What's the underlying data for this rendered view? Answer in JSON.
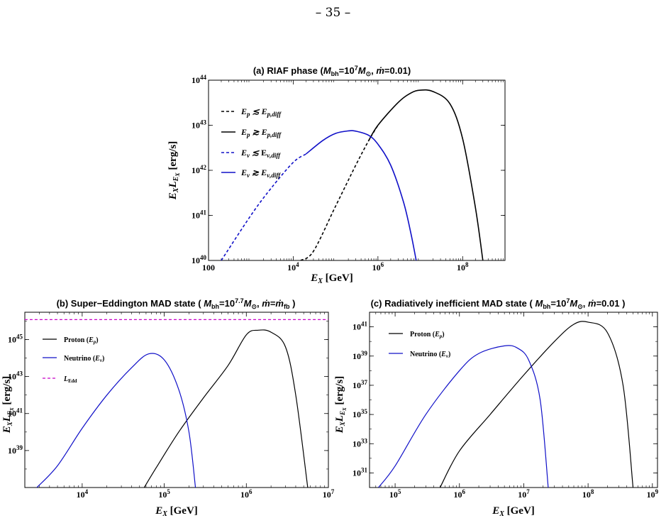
{
  "page": {
    "number": "– 35 –"
  },
  "chart_data": [
    {
      "id": "a",
      "type": "line",
      "title": "(a) RIAF phase (Mbh=10^7 M⊙, ṁ=0.01)",
      "xlabel": "E_X [GeV]",
      "ylabel": "E_X L_EX [erg/s]",
      "xscale": "log",
      "yscale": "log",
      "xlim": [
        100,
        1000000000.0
      ],
      "ylim": [
        1e+40,
        1e+44
      ],
      "xticks": [
        {
          "v": 100,
          "label": "100"
        },
        {
          "v": 10000.0,
          "label": "10^4"
        },
        {
          "v": 1000000.0,
          "label": "10^6"
        },
        {
          "v": 100000000.0,
          "label": "10^8"
        }
      ],
      "yticks": [
        {
          "v": 1e+40,
          "label": "10^40"
        },
        {
          "v": 1e+41,
          "label": "10^41"
        },
        {
          "v": 1e+42,
          "label": "10^42"
        },
        {
          "v": 1e+43,
          "label": "10^43"
        },
        {
          "v": 1e+44,
          "label": "10^44"
        }
      ],
      "legend_position": "top-left",
      "series": [
        {
          "name": "Ep ≲ Ep,diff",
          "color": "#000000",
          "style": "dashed",
          "x": [
            15000,
            30000,
            100000,
            300000,
            600000,
            1000000
          ],
          "y": [
            1e+40,
            1.6e+40,
            1.6e+41,
            1.3e+42,
            4.5e+42,
            1e+43
          ]
        },
        {
          "name": "Ep ≳ Ep,diff",
          "color": "#000000",
          "style": "solid",
          "x": [
            600000,
            1000000,
            3000000,
            6000000,
            10000000,
            20000000,
            50000000,
            100000000,
            200000000,
            300000000
          ],
          "y": [
            4.5e+42,
            1e+43,
            3.2e+43,
            5.2e+43,
            6e+43,
            5.6e+43,
            3e+43,
            5e+42,
            1.5e+41,
            1e+40
          ]
        },
        {
          "name": "Eν ≲ Eν,diff",
          "color": "#1010c8",
          "style": "dashed",
          "x": [
            200,
            1000,
            3000,
            10000,
            20000
          ],
          "y": [
            1e+40,
            1e+41,
            4e+41,
            1.5e+42,
            2.3e+42
          ]
        },
        {
          "name": "Eν ≳ Eν,diff",
          "color": "#1010c8",
          "style": "solid",
          "x": [
            20000,
            50000,
            100000,
            200000,
            300000,
            600000,
            1000000,
            2000000,
            4000000,
            6000000,
            8000000
          ],
          "y": [
            2.3e+42,
            4.6e+42,
            6.6e+42,
            7.5e+42,
            7.4e+42,
            6e+42,
            3.8e+42,
            1.3e+42,
            2e+41,
            4e+40,
            1e+40
          ]
        }
      ]
    },
    {
      "id": "b",
      "type": "line",
      "title": "(b) Super−Eddington MAD state ( Mbh=10^7.7 M⊙, ṁ=ṁfb )",
      "xlabel": "E_X [GeV]",
      "ylabel": "E_X L_EX [erg/s]",
      "xscale": "log",
      "yscale": "log",
      "xlim": [
        2000,
        10000000.0
      ],
      "ylim": [
        1e+37,
        3e+46
      ],
      "xticks": [
        {
          "v": 10000.0,
          "label": "10^4"
        },
        {
          "v": 100000.0,
          "label": "10^5"
        },
        {
          "v": 1000000.0,
          "label": "10^6"
        },
        {
          "v": 10000000.0,
          "label": "10^7"
        }
      ],
      "yticks": [
        {
          "v": 1e+39,
          "label": "10^39"
        },
        {
          "v": 1e+41,
          "label": "10^41"
        },
        {
          "v": 1e+43,
          "label": "10^43"
        },
        {
          "v": 1e+45,
          "label": "10^45"
        }
      ],
      "legend_position": "top-left",
      "series": [
        {
          "name": "Proton (Ep)",
          "color": "#000000",
          "style": "solid",
          "x": [
            57000,
            80000,
            150000,
            300000,
            600000,
            1000000,
            1400000,
            2000000,
            3000000,
            4000000,
            5600000
          ],
          "y": [
            1e+37,
            1.2e+38,
            1e+40,
            7e+41,
            4e+43,
            1.8e+45,
            3.2e+45,
            2.5e+45,
            4e+44,
            1e+42,
            1e+37
          ]
        },
        {
          "name": "Neutrino (Eν)",
          "color": "#1010c8",
          "style": "solid",
          "x": [
            2800,
            5000,
            10000,
            20000,
            40000,
            65000,
            100000,
            150000,
            200000,
            240000
          ],
          "y": [
            1e+37,
            1.5e+38,
            1.6e+40,
            1e+42,
            3e+43,
            1.7e+44,
            8e+43,
            2e+42,
            1e+40,
            1e+37
          ]
        },
        {
          "name": "LEdd",
          "color": "#c800c8",
          "style": "dashed",
          "x": [
            2000,
            10000000
          ],
          "y": [
            1.2e+46,
            1.2e+46
          ]
        }
      ]
    },
    {
      "id": "c",
      "type": "line",
      "title": "(c) Radiatively inefficient MAD state ( Mbh=10^7 M⊙, ṁ=0.01 )",
      "xlabel": "E_X [GeV]",
      "ylabel": "E_X L_EX [erg/s]",
      "xscale": "log",
      "yscale": "log",
      "xlim": [
        40000,
        1200000000.0
      ],
      "ylim": [
        1e+30,
        1e+42
      ],
      "xticks": [
        {
          "v": 100000.0,
          "label": "10^5"
        },
        {
          "v": 1000000.0,
          "label": "10^6"
        },
        {
          "v": 10000000.0,
          "label": "10^7"
        },
        {
          "v": 100000000.0,
          "label": "10^8"
        },
        {
          "v": 1000000000.0,
          "label": "10^9"
        }
      ],
      "yticks": [
        {
          "v": 1e+31,
          "label": "10^31"
        },
        {
          "v": 1e+33,
          "label": "10^33"
        },
        {
          "v": 1e+35,
          "label": "10^35"
        },
        {
          "v": 1e+37,
          "label": "10^37"
        },
        {
          "v": 1e+39,
          "label": "10^39"
        },
        {
          "v": 1e+41,
          "label": "10^41"
        }
      ],
      "legend_position": "top-left",
      "series": [
        {
          "name": "Proton (Ep)",
          "color": "#000000",
          "style": "solid",
          "x": [
            500000,
            1000000,
            3000000,
            10000000,
            30000000,
            60000000,
            100000000,
            200000000,
            350000000,
            500000000
          ],
          "y": [
            1e+30,
            3.2e+32,
            1e+35,
            5e+37,
            1e+40,
            1.5e+41,
            2.1e+41,
            4e+40,
            1e+37,
            1e+30
          ]
        },
        {
          "name": "Neutrino (Eν)",
          "color": "#1010c8",
          "style": "solid",
          "x": [
            55000,
            100000,
            300000,
            1000000,
            2000000,
            5000000,
            8000000,
            12000000,
            18000000,
            24000000
          ],
          "y": [
            1e+30,
            3e+31,
            1e+35,
            1e+38,
            1.5e+39,
            5e+39,
            3.5e+39,
            5e+38,
            1e+36,
            1e+30
          ]
        }
      ]
    }
  ]
}
